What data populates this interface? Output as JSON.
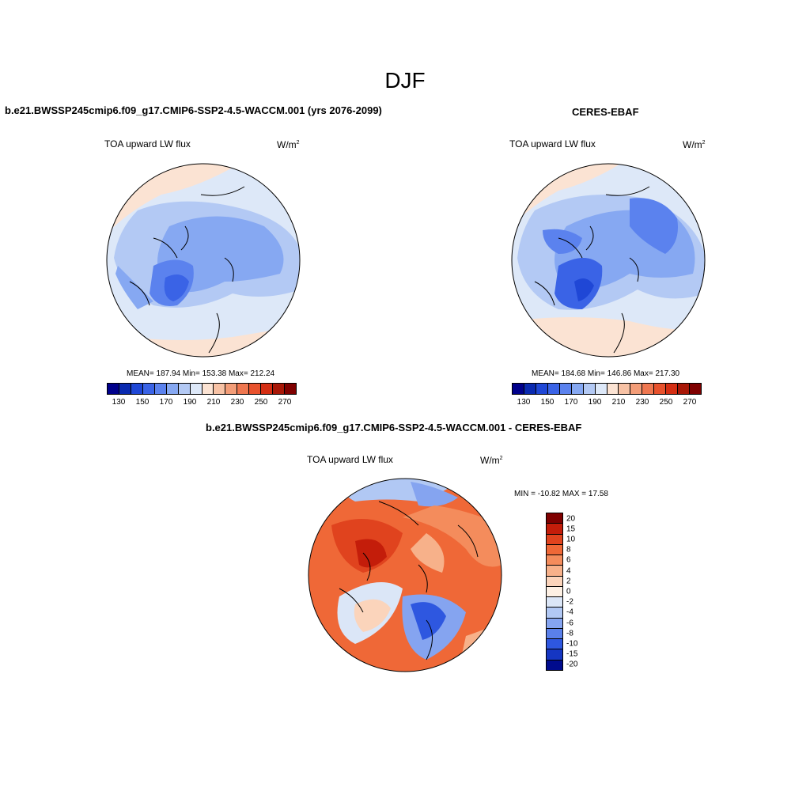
{
  "season": "DJF",
  "panels": {
    "model": {
      "title": "b.e21.BWSSP245cmip6.f09_g17.CMIP6-SSP2-4.5-WACCM.001 (yrs 2076-2099)",
      "variable": "TOA upward LW flux",
      "units_base": "W/m",
      "units_exp": "2",
      "stats": "MEAN= 187.94  Min= 153.38  Max= 212.24"
    },
    "obs": {
      "title": "CERES-EBAF",
      "variable": "TOA upward LW flux",
      "units_base": "W/m",
      "units_exp": "2",
      "stats": "MEAN= 184.68  Min= 146.86  Max= 217.30"
    },
    "diff": {
      "title": "b.e21.BWSSP245cmip6.f09_g17.CMIP6-SSP2-4.5-WACCM.001 - CERES-EBAF",
      "variable": "TOA upward LW flux",
      "units_base": "W/m",
      "units_exp": "2",
      "stats": "MIN = -10.82 MAX =  17.58"
    }
  },
  "colorbars": {
    "absolute": {
      "colors": [
        "#00008b",
        "#0a2ab0",
        "#1f47d6",
        "#3a63e6",
        "#5b82ee",
        "#86a8f2",
        "#b3c9f4",
        "#dde8f8",
        "#fbe3d3",
        "#f7c2a5",
        "#f39d78",
        "#ef7750",
        "#e8522d",
        "#d42e13",
        "#a81707",
        "#7f0000"
      ],
      "tick_labels": [
        "130",
        "150",
        "170",
        "190",
        "210",
        "230",
        "250",
        "270"
      ]
    },
    "difference": {
      "colors": [
        "#7f0000",
        "#c41d0a",
        "#e0431e",
        "#ef6837",
        "#f48c5c",
        "#f7b18a",
        "#fbd4bb",
        "#fdf0e4",
        "#dbe6f7",
        "#b1c8f4",
        "#85a4f0",
        "#5a80ea",
        "#2e57e0",
        "#1536c2",
        "#000b8d"
      ],
      "tick_labels": [
        "20",
        "15",
        "10",
        "8",
        "6",
        "4",
        "2",
        "0",
        "-2",
        "-4",
        "-6",
        "-8",
        "-10",
        "-15",
        "-20"
      ]
    }
  }
}
